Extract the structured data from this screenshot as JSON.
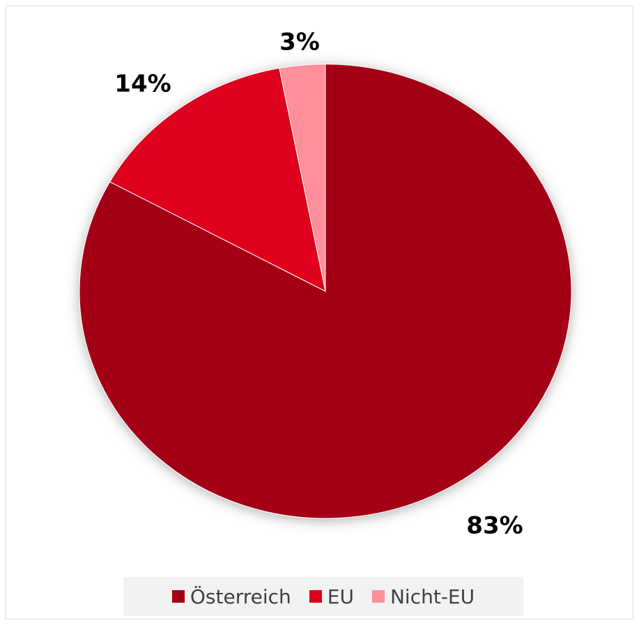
{
  "chart_data": {
    "type": "pie",
    "categories": [
      "Österreich",
      "EU",
      "Nicht-EU"
    ],
    "values": [
      83,
      14,
      3
    ],
    "labels": [
      "83%",
      "14%",
      "3%"
    ],
    "colors": [
      "#a30015",
      "#de001b",
      "#ff8f9b"
    ],
    "start_angle": "12 o'clock",
    "direction": "clockwise",
    "legend_position": "bottom"
  }
}
